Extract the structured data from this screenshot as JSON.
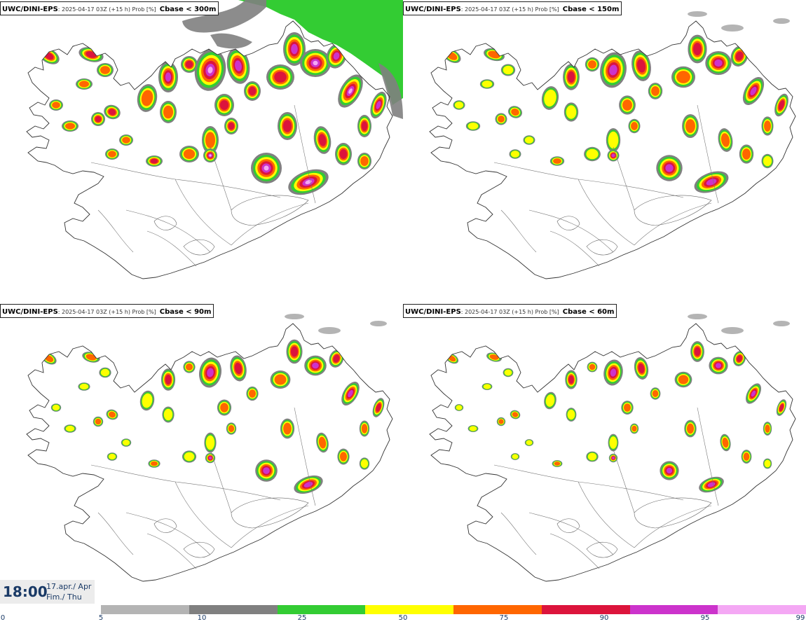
{
  "panels": [
    {
      "model": "UWC/DINI-EPS",
      "meta": ": 2025-04-17 03Z (+15 h) Prob [%]",
      "variable": "Cbase < 300m"
    },
    {
      "model": "UWC/DINI-EPS",
      "meta": ": 2025-04-17 03Z (+15 h) Prob [%]",
      "variable": "Cbase < 150m"
    },
    {
      "model": "UWC/DINI-EPS",
      "meta": ": 2025-04-17 03Z (+15 h) Prob [%]",
      "variable": "Cbase < 90m"
    },
    {
      "model": "UWC/DINI-EPS",
      "meta": ": 2025-04-17 03Z (+15 h) Prob [%]",
      "variable": "Cbase < 60m"
    }
  ],
  "valid_time": {
    "time": "18:00",
    "date": "17.apr./ Apr",
    "weekday": "Fim./ Thu"
  },
  "legend": {
    "ticks": [
      "0",
      "5",
      "10",
      "25",
      "50",
      "75",
      "90",
      "95",
      "99"
    ],
    "colors": [
      "#ffffff",
      "#b4b4b4",
      "#808080",
      "#33cc33",
      "#ffff00",
      "#ff6600",
      "#dc143c",
      "#cc33cc",
      "#f4a8f4"
    ]
  }
}
